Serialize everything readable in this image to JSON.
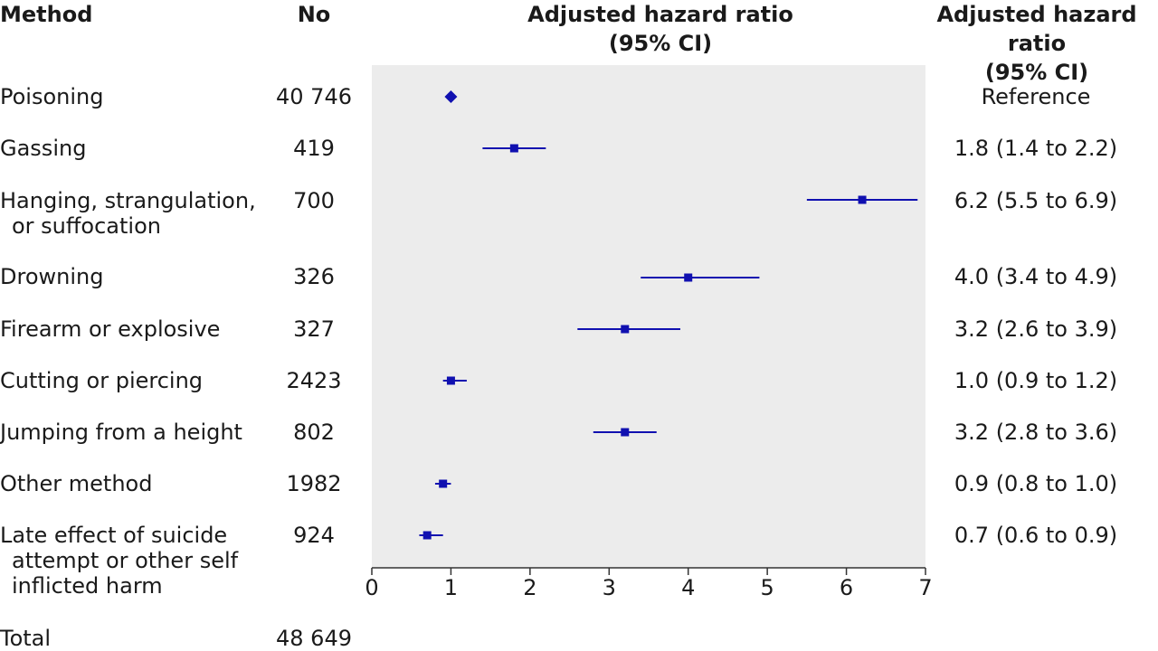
{
  "headers": {
    "method": "Method",
    "no": "No",
    "plot_title_1": "Adjusted hazard ratio",
    "plot_title_2": "(95% CI)",
    "ci_title_1": "Adjusted hazard ratio",
    "ci_title_2": "(95% CI)"
  },
  "rows": [
    {
      "label_1": "Poisoning",
      "label_2": "",
      "no": "40 746",
      "ci_text": "Reference"
    },
    {
      "label_1": "Gassing",
      "label_2": "",
      "no": "419",
      "ci_text": "1.8 (1.4 to 2.2)"
    },
    {
      "label_1": "Hanging, strangulation,",
      "label_2": "or suffocation",
      "no": "700",
      "ci_text": "6.2 (5.5 to 6.9)"
    },
    {
      "label_1": "Drowning",
      "label_2": "",
      "no": "326",
      "ci_text": "4.0 (3.4 to 4.9)"
    },
    {
      "label_1": "Firearm or explosive",
      "label_2": "",
      "no": "327",
      "ci_text": "3.2 (2.6 to 3.9)"
    },
    {
      "label_1": "Cutting or piercing",
      "label_2": "",
      "no": "2423",
      "ci_text": "1.0 (0.9 to 1.2)"
    },
    {
      "label_1": "Jumping from a height",
      "label_2": "",
      "no": "802",
      "ci_text": "3.2 (2.8 to 3.6)"
    },
    {
      "label_1": "Other method",
      "label_2": "",
      "no": "1982",
      "ci_text": "0.9 (0.8 to 1.0)"
    },
    {
      "label_1": "Late effect of suicide",
      "label_2": "attempt or other self",
      "label_3": "inflicted harm",
      "no": "924",
      "ci_text": "0.7 (0.6 to 0.9)"
    }
  ],
  "total": {
    "label": "Total",
    "no": "48 649"
  },
  "chart_data": {
    "type": "scatter",
    "subtype": "forest",
    "title": "Adjusted hazard ratio (95% CI)",
    "categories": [
      "Poisoning",
      "Gassing",
      "Hanging, strangulation, or suffocation",
      "Drowning",
      "Firearm or explosive",
      "Cutting or piercing",
      "Jumping from a height",
      "Other method",
      "Late effect of suicide attempt or other self inflicted harm"
    ],
    "values": [
      1.0,
      1.8,
      6.2,
      4.0,
      3.2,
      1.0,
      3.2,
      0.9,
      0.7
    ],
    "ci_low": [
      null,
      1.4,
      5.5,
      3.4,
      2.6,
      0.9,
      2.8,
      0.8,
      0.6
    ],
    "ci_high": [
      null,
      2.2,
      6.9,
      4.9,
      3.9,
      1.2,
      3.6,
      1.0,
      0.9
    ],
    "reference_index": 0,
    "xlim": [
      0,
      7
    ],
    "xticks": [
      0,
      1,
      2,
      3,
      4,
      5,
      6,
      7
    ],
    "grid": false,
    "colors": {
      "marker": "#1010b0",
      "plot_bg": "#ececec",
      "axis": "#333333"
    }
  }
}
